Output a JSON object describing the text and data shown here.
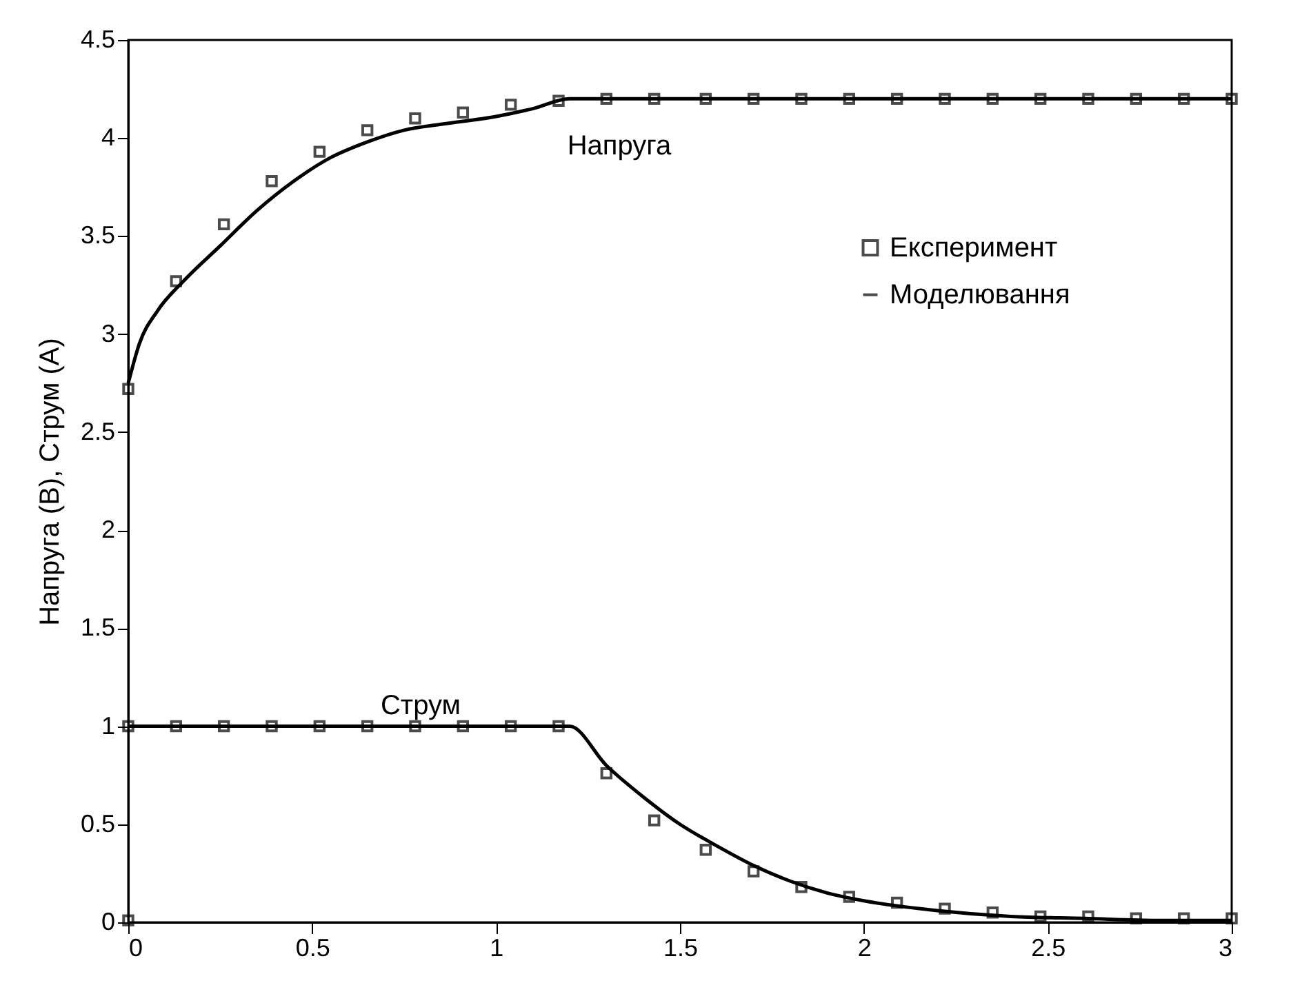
{
  "chart_data": {
    "type": "line",
    "ylabel": "Напруга (В), Струм (А)",
    "xlim": [
      0,
      3
    ],
    "xticks": [
      0,
      0.5,
      1,
      1.5,
      2,
      2.5,
      3
    ],
    "ylim": [
      0,
      4.5
    ],
    "yticks": [
      0,
      0.5,
      1,
      1.5,
      2,
      2.5,
      3,
      3.5,
      4,
      4.5
    ],
    "grid": false,
    "legend": "top right",
    "annotations": [
      "Напруга",
      "Струм"
    ],
    "series": [
      {
        "name": "Експеримент",
        "type": "scatter",
        "marker": "square",
        "color": "#000000",
        "x": [
          0,
          0.13,
          0.26,
          0.39,
          0.52,
          0.65,
          0.78,
          0.91,
          1.04,
          1.17,
          1.3,
          1.43,
          1.57,
          1.7,
          1.83,
          1.96,
          2.09,
          2.22,
          2.35,
          2.48,
          2.61,
          2.74,
          2.87,
          3,
          0,
          0,
          0.13,
          0.26,
          0.39,
          0.52,
          0.65,
          0.78,
          0.91,
          1.04,
          1.17,
          1.3,
          1.43,
          1.57,
          1.7,
          1.83,
          1.96,
          2.09,
          2.22,
          2.35,
          2.48,
          2.61,
          2.74,
          2.87,
          3
        ],
        "values": [
          2.72,
          3.27,
          3.56,
          3.78,
          3.93,
          4.04,
          4.1,
          4.13,
          4.17,
          4.19,
          4.2,
          4.2,
          4.2,
          4.2,
          4.2,
          4.2,
          4.2,
          4.2,
          4.2,
          4.2,
          4.2,
          4.2,
          4.2,
          4.2,
          0.01,
          1,
          1,
          1,
          1,
          1,
          1,
          1,
          1,
          1,
          1,
          0.76,
          0.52,
          0.37,
          0.26,
          0.18,
          0.13,
          0.1,
          0.07,
          0.05,
          0.03,
          0.03,
          0.02,
          0.02,
          0.02
        ]
      },
      {
        "name": "Моделювання",
        "line_style": "solid",
        "color": "#000000",
        "x": [
          0,
          0.03,
          0.08,
          0.15,
          0.25,
          0.35,
          0.45,
          0.55,
          0.65,
          0.75,
          0.85,
          1.0,
          1.1,
          1.2,
          1.5,
          2,
          2.5,
          3
        ],
        "values": [
          2.75,
          2.95,
          3.12,
          3.27,
          3.45,
          3.63,
          3.78,
          3.9,
          3.98,
          4.04,
          4.07,
          4.11,
          4.15,
          4.2,
          4.2,
          4.2,
          4.2,
          4.2
        ]
      },
      {
        "line_style": "solid",
        "color": "#000000",
        "x": [
          0,
          0.5,
          1.0,
          1.2,
          1.3,
          1.4,
          1.5,
          1.6,
          1.7,
          1.8,
          1.9,
          2.0,
          2.2,
          2.4,
          2.6,
          2.8,
          3
        ],
        "values": [
          1,
          1,
          1,
          1,
          0.8,
          0.64,
          0.5,
          0.39,
          0.29,
          0.21,
          0.15,
          0.11,
          0.06,
          0.03,
          0.02,
          0.01,
          0.01
        ]
      }
    ]
  }
}
